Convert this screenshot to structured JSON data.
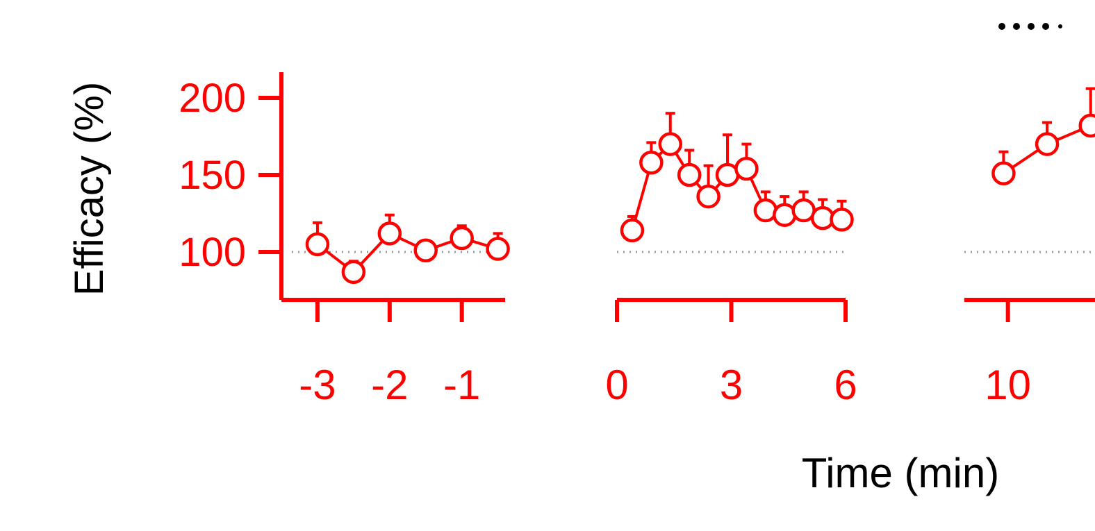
{
  "chart_data": {
    "type": "line",
    "title": "",
    "xlabel": "Time (min)",
    "ylabel": "Efficacy (%)",
    "ylim": [
      70,
      210
    ],
    "grid": false,
    "baseline": 100,
    "colors": {
      "series": "#ff0000",
      "axis_label": "#000000",
      "baseline": "#999999",
      "legend_dots": "#000000"
    },
    "y_ticks": [
      {
        "value": 100,
        "label": "100"
      },
      {
        "value": 150,
        "label": "150"
      },
      {
        "value": 200,
        "label": "200"
      }
    ],
    "panels": [
      {
        "xlim": [
          -3.5,
          -0.4
        ],
        "x_ticks": [
          {
            "value": -3,
            "label": "-3"
          },
          {
            "value": -2,
            "label": "-2"
          },
          {
            "value": -1,
            "label": "-1"
          }
        ],
        "points": [
          {
            "x": -3.0,
            "y": 105,
            "err": 14
          },
          {
            "x": -2.5,
            "y": 87,
            "err": 7
          },
          {
            "x": -2.0,
            "y": 112,
            "err": 12
          },
          {
            "x": -1.5,
            "y": 101,
            "err": 0
          },
          {
            "x": -1.0,
            "y": 109,
            "err": 8
          },
          {
            "x": -0.5,
            "y": 102,
            "err": 10
          }
        ]
      },
      {
        "xlim": [
          0,
          6
        ],
        "x_ticks": [
          {
            "value": 0,
            "label": "0"
          },
          {
            "value": 3,
            "label": "3"
          },
          {
            "value": 6,
            "label": "6"
          }
        ],
        "points": [
          {
            "x": 0.4,
            "y": 114,
            "err": 9
          },
          {
            "x": 0.9,
            "y": 158,
            "err": 13
          },
          {
            "x": 1.4,
            "y": 170,
            "err": 20
          },
          {
            "x": 1.9,
            "y": 150,
            "err": 16
          },
          {
            "x": 2.4,
            "y": 136,
            "err": 20
          },
          {
            "x": 2.9,
            "y": 150,
            "err": 26
          },
          {
            "x": 3.4,
            "y": 154,
            "err": 16
          },
          {
            "x": 3.9,
            "y": 127,
            "err": 12
          },
          {
            "x": 4.4,
            "y": 124,
            "err": 12
          },
          {
            "x": 4.9,
            "y": 127,
            "err": 12
          },
          {
            "x": 5.4,
            "y": 122,
            "err": 12
          },
          {
            "x": 5.9,
            "y": 121,
            "err": 12
          }
        ]
      },
      {
        "xlim": [
          9,
          12
        ],
        "x_ticks": [
          {
            "value": 10,
            "label": "10"
          }
        ],
        "points": [
          {
            "x": 9.9,
            "y": 151,
            "err": 14
          },
          {
            "x": 10.9,
            "y": 170,
            "err": 14
          },
          {
            "x": 11.9,
            "y": 182,
            "err": 24
          }
        ]
      }
    ]
  }
}
